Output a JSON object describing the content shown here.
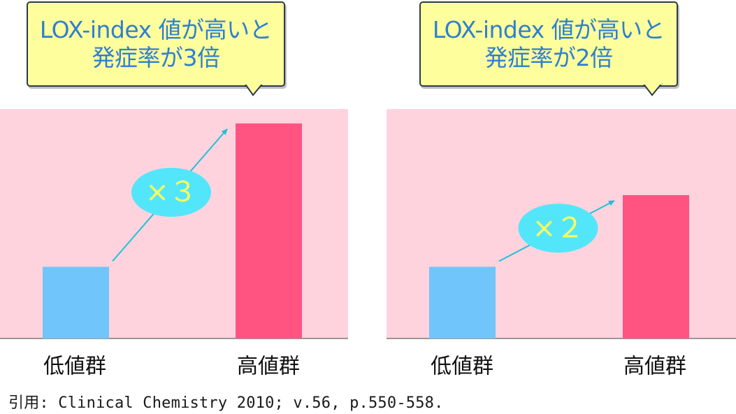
{
  "colors": {
    "callout_bg": "#fefe9c",
    "callout_border": "#2a3a4a",
    "callout_text": "#2e7fd0",
    "panel_bg": "#ffd3de",
    "low_bar": "#70c5fb",
    "high_bar": "#ff5482",
    "arrow": "#1fc2d8",
    "badge_bg": "#53e6fb",
    "badge_text": "#fefe5a"
  },
  "chart_data": [
    {
      "type": "bar",
      "callout": [
        "LOX-index 値が高いと",
        "発症率が3倍"
      ],
      "categories": [
        "低値群",
        "高値群"
      ],
      "values": [
        1,
        3
      ],
      "ylim": [
        0,
        3.2
      ],
      "multiplier_label": "×３",
      "grid": false
    },
    {
      "type": "bar",
      "callout": [
        "LOX-index 値が高いと",
        "発症率が2倍"
      ],
      "categories": [
        "低値群",
        "高値群"
      ],
      "values": [
        1,
        2
      ],
      "ylim": [
        0,
        3.2
      ],
      "multiplier_label": "×２",
      "grid": false
    }
  ],
  "citation": "引用: Clinical Chemistry 2010; v.56, p.550-558."
}
